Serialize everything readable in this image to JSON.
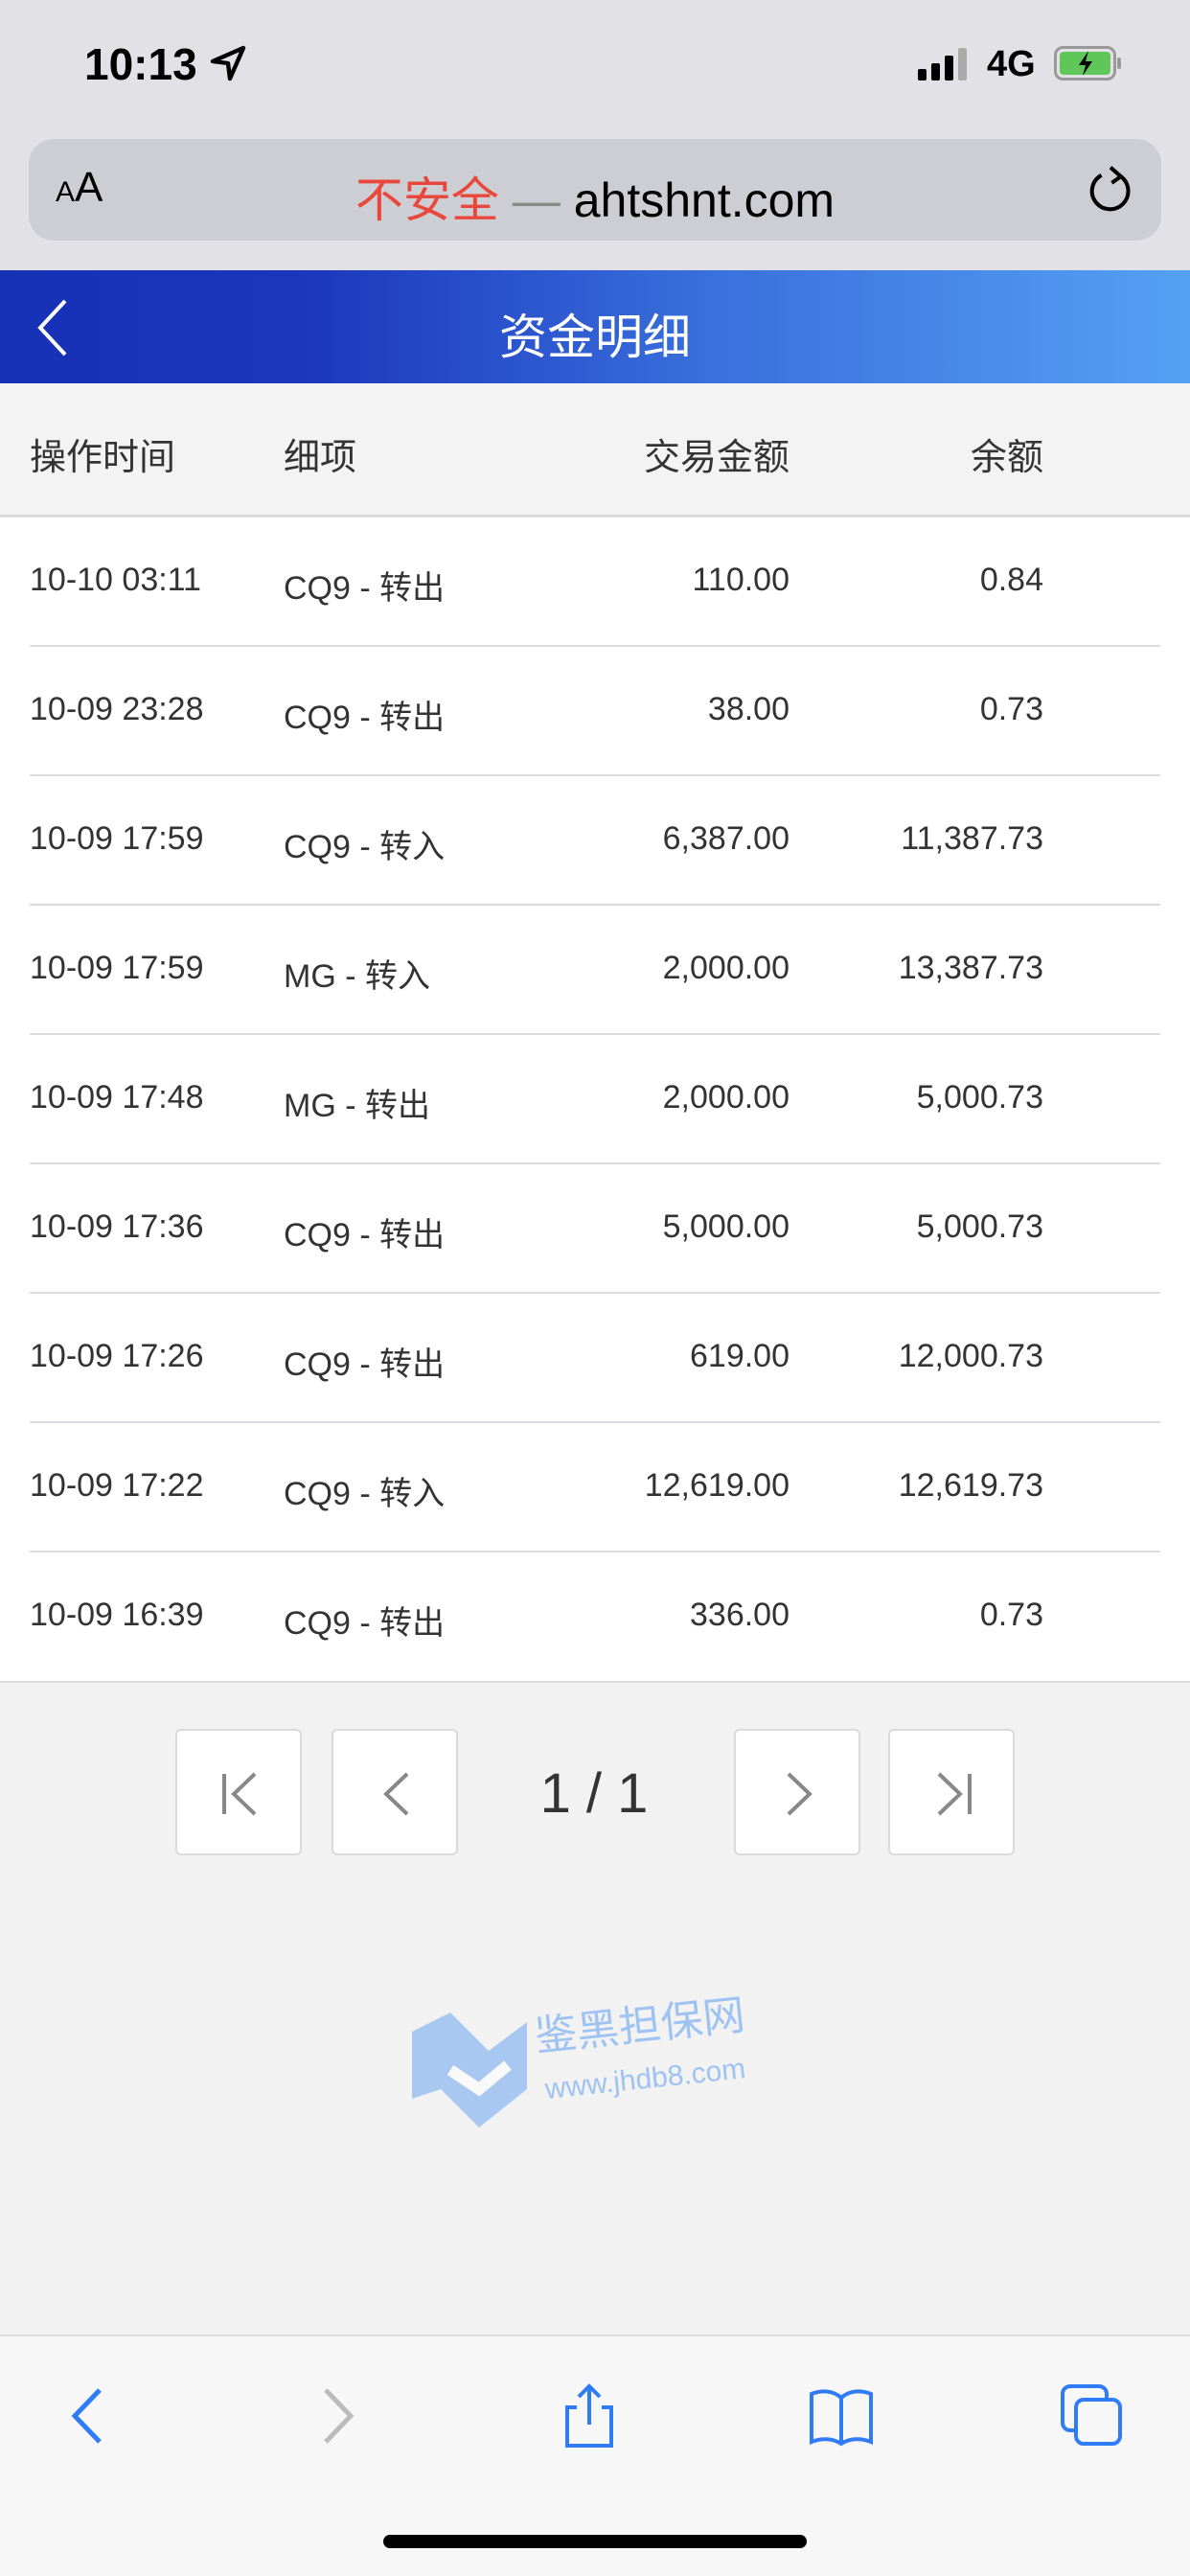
{
  "status_bar": {
    "time": "10:13",
    "network": "4G",
    "battery": "charging"
  },
  "browser": {
    "text_size_label": "AA",
    "insecure_label": "不安全",
    "separator": "—",
    "domain": "ahtshnt.com"
  },
  "header": {
    "title": "资金明细"
  },
  "table": {
    "columns": [
      "操作时间",
      "细项",
      "交易金额",
      "余额"
    ],
    "rows": [
      {
        "time": "10-10 03:11",
        "detail": "CQ9 - 转出",
        "amount": "110.00",
        "balance": "0.84"
      },
      {
        "time": "10-09 23:28",
        "detail": "CQ9 - 转出",
        "amount": "38.00",
        "balance": "0.73"
      },
      {
        "time": "10-09 17:59",
        "detail": "CQ9 - 转入",
        "amount": "6,387.00",
        "balance": "11,387.73"
      },
      {
        "time": "10-09 17:59",
        "detail": "MG - 转入",
        "amount": "2,000.00",
        "balance": "13,387.73"
      },
      {
        "time": "10-09 17:48",
        "detail": "MG - 转出",
        "amount": "2,000.00",
        "balance": "5,000.73"
      },
      {
        "time": "10-09 17:36",
        "detail": "CQ9 - 转出",
        "amount": "5,000.00",
        "balance": "5,000.73"
      },
      {
        "time": "10-09 17:26",
        "detail": "CQ9 - 转出",
        "amount": "619.00",
        "balance": "12,000.73"
      },
      {
        "time": "10-09 17:22",
        "detail": "CQ9 - 转入",
        "amount": "12,619.00",
        "balance": "12,619.73"
      },
      {
        "time": "10-09 16:39",
        "detail": "CQ9 - 转出",
        "amount": "336.00",
        "balance": "0.73"
      }
    ]
  },
  "pagination": {
    "label": "1 / 1",
    "current": 1,
    "total": 1
  },
  "watermark": {
    "name": "鉴黑担保网",
    "url": "www.jhdb8.com"
  },
  "colors": {
    "header_start": "#1631b6",
    "header_end": "#54a1f5",
    "insecure": "#e8473b",
    "toolbar_icon": "#2f7cf6"
  }
}
